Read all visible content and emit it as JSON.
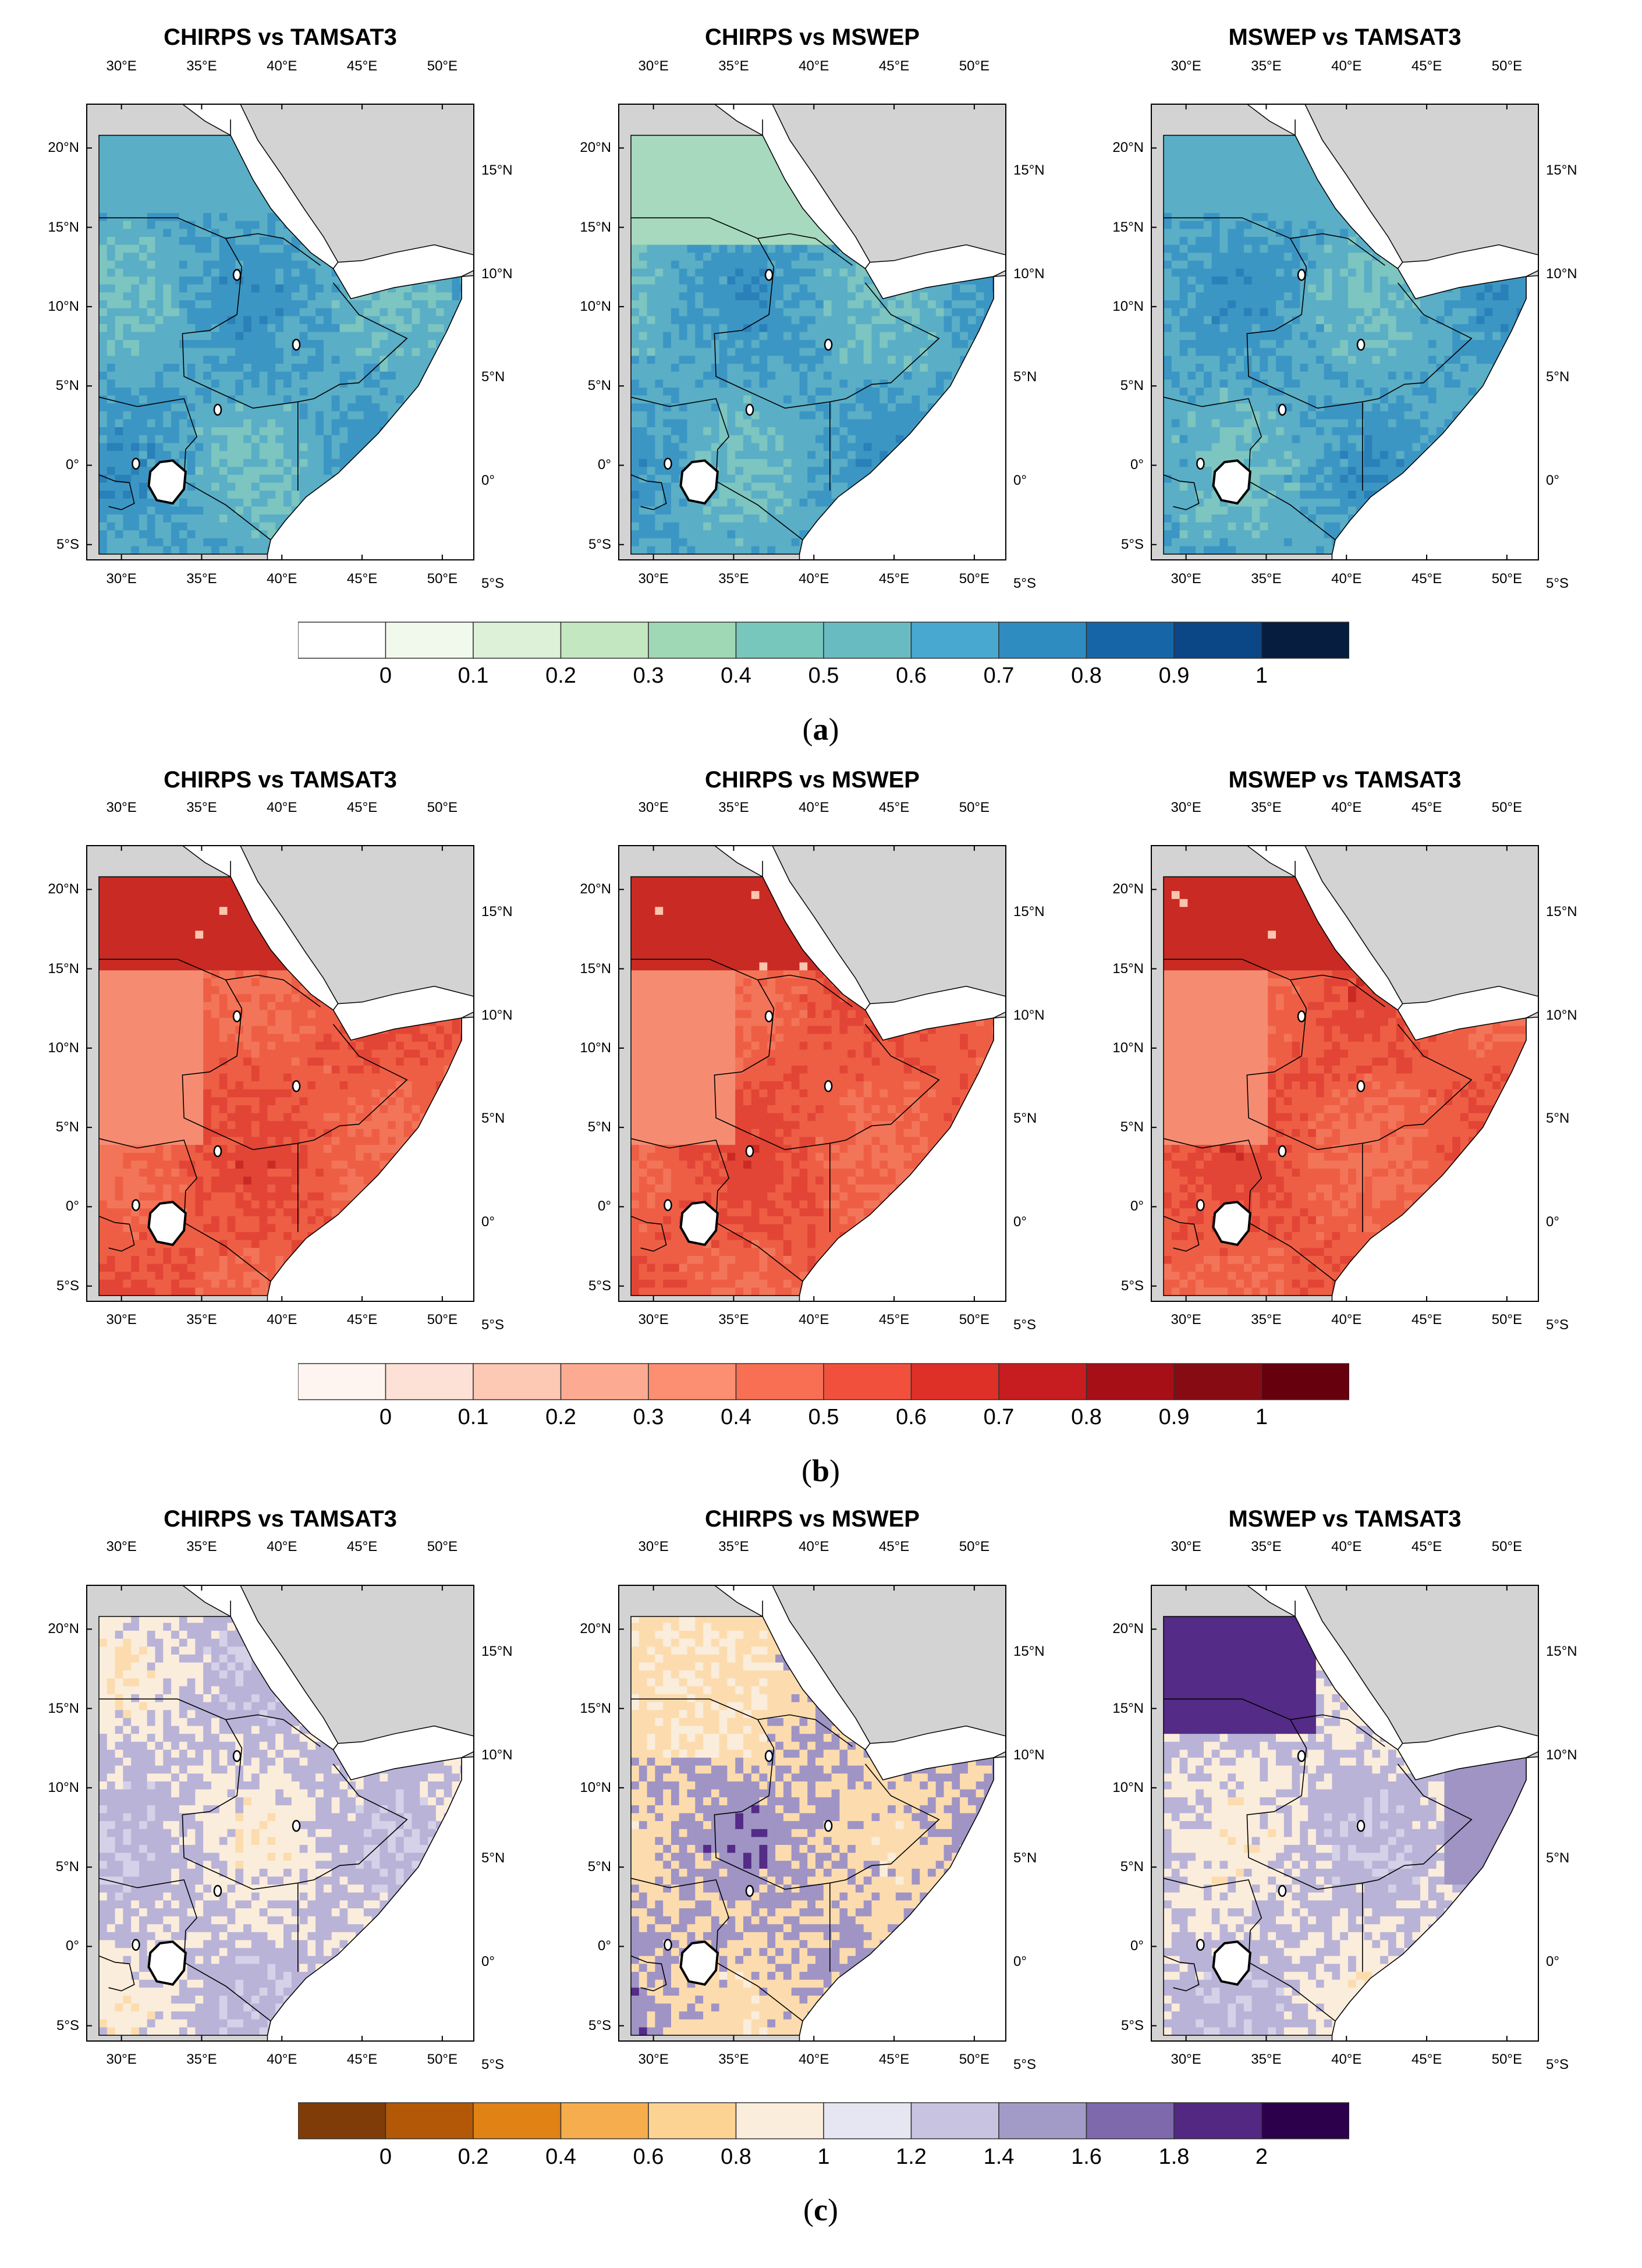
{
  "figure": {
    "panels": [
      {
        "id": "a",
        "caption_letter": "a",
        "map_titles": [
          "CHIRPS vs TAMSAT3",
          "CHIRPS vs MSWEP",
          "MSWEP vs TAMSAT3"
        ],
        "colorbar": {
          "tick_labels": [
            "0",
            "0.1",
            "0.2",
            "0.3",
            "0.4",
            "0.5",
            "0.6",
            "0.7",
            "0.8",
            "0.9",
            "1"
          ],
          "colors": [
            "#ffffff",
            "#f1f9ec",
            "#dcf1d8",
            "#c3e7c0",
            "#9fd8b4",
            "#77c7bc",
            "#68bcc1",
            "#48a8cf",
            "#2f8cc0",
            "#1666a7",
            "#0b4687",
            "#061d3f"
          ]
        },
        "field_colors": [
          "#1a6ba8",
          "#2a80b8",
          "#3c96c4",
          "#5aaec6",
          "#7cc5c0",
          "#a6d9bd",
          "#d8efd6"
        ]
      },
      {
        "id": "b",
        "caption_letter": "b",
        "map_titles": [
          "CHIRPS vs TAMSAT3",
          "CHIRPS vs MSWEP",
          "MSWEP vs TAMSAT3"
        ],
        "colorbar": {
          "tick_labels": [
            "0",
            "0.1",
            "0.2",
            "0.3",
            "0.4",
            "0.5",
            "0.6",
            "0.7",
            "0.8",
            "0.9",
            "1"
          ],
          "colors": [
            "#fff5f0",
            "#fee1d6",
            "#fdc8b4",
            "#fcab92",
            "#fc8e72",
            "#f96f54",
            "#f1513c",
            "#df3028",
            "#c81d20",
            "#a50f15",
            "#870b12",
            "#67000d"
          ]
        },
        "field_colors": [
          "#f4a38b",
          "#f58c72",
          "#f37559",
          "#ee5e45",
          "#e24535",
          "#c92a23",
          "#fbc4ad"
        ]
      },
      {
        "id": "c",
        "caption_letter": "c",
        "map_titles": [
          "CHIRPS vs TAMSAT3",
          "CHIRPS vs MSWEP",
          "MSWEP vs TAMSAT3"
        ],
        "colorbar": {
          "tick_labels": [
            "0",
            "0.2",
            "0.4",
            "0.6",
            "0.8",
            "1",
            "1.2",
            "1.4",
            "1.6",
            "1.8",
            "2"
          ],
          "colors": [
            "#7f3b08",
            "#b35806",
            "#e08214",
            "#f6ad4d",
            "#fdd394",
            "#fbeddb",
            "#e6e5f2",
            "#c8c3e1",
            "#a29ac7",
            "#7d69ac",
            "#532883",
            "#2d004b"
          ]
        },
        "field_colors": [
          "#e6e5f2",
          "#d4d1e8",
          "#b9b3d8",
          "#fbeddb",
          "#fcdcae",
          "#9f94c4",
          "#542b86"
        ]
      }
    ],
    "axes": {
      "lon_labels": [
        "30°E",
        "35°E",
        "40°E",
        "45°E",
        "50°E"
      ],
      "lat_labels_left": [
        "20°N",
        "15°N",
        "10°N",
        "5°N",
        "0°",
        "5°S"
      ],
      "lat_labels_right": [
        "15°N",
        "10°N",
        "5°N",
        "0°",
        "5°S"
      ]
    },
    "background": {
      "land_color": "#d3d3d3",
      "sea_color": "#ffffff",
      "border_color": "#000000"
    }
  }
}
